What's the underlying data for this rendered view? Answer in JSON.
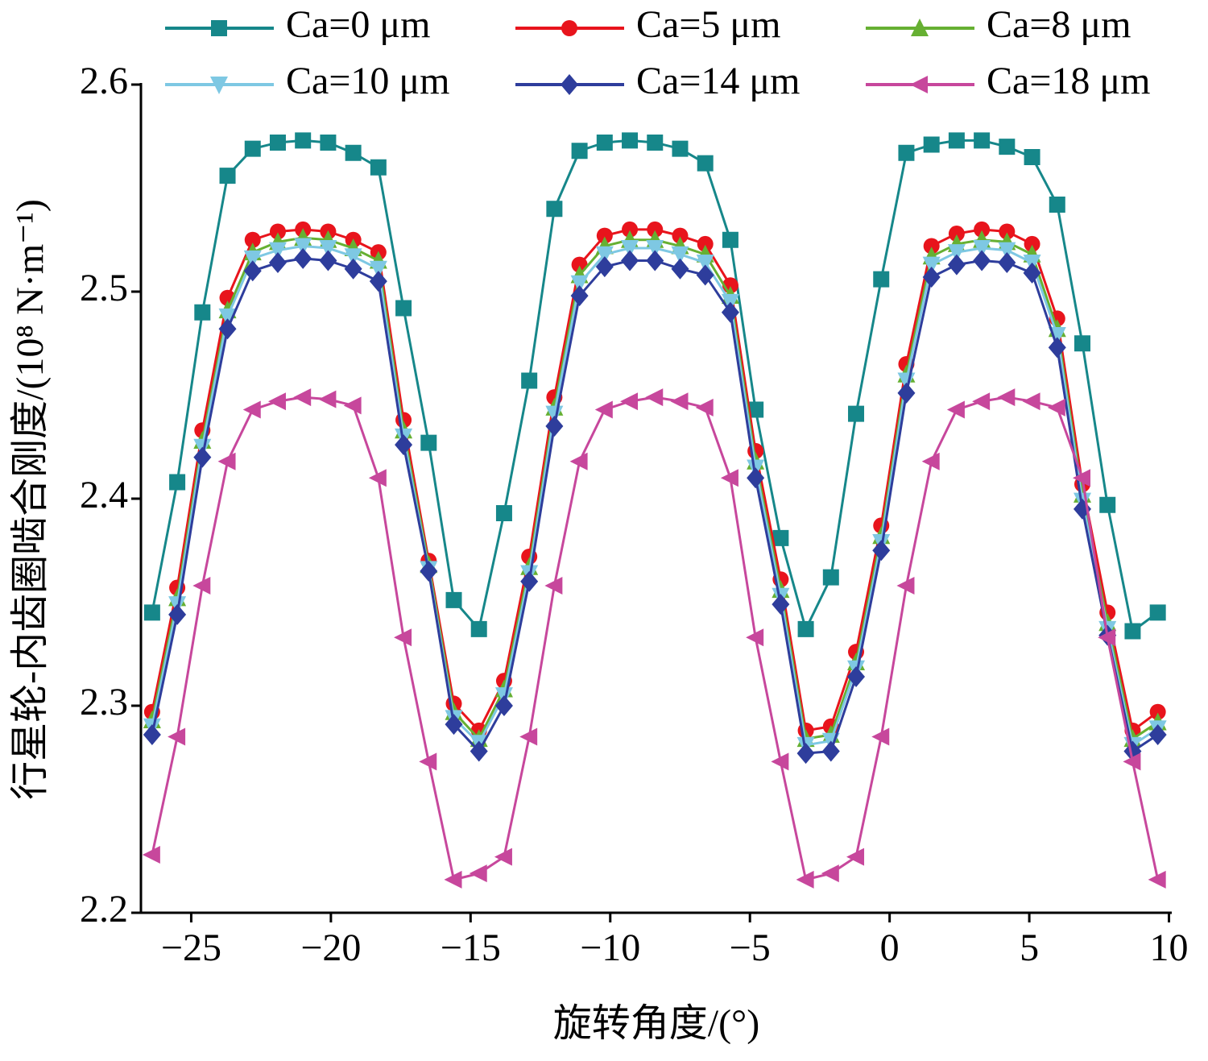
{
  "chart_data": {
    "type": "line",
    "xlabel": "旋转角度/(°)",
    "ylabel": "行星轮-内齿圈啮合刚度/(10⁸ N·m⁻¹)",
    "legend": "top",
    "x": [
      -26.4,
      -25.5,
      -24.6,
      -23.7,
      -22.8,
      -21.9,
      -21.0,
      -20.1,
      -19.2,
      -18.3,
      -17.4,
      -16.5,
      -15.6,
      -14.7,
      -13.8,
      -12.9,
      -12.0,
      -11.1,
      -10.2,
      -9.3,
      -8.4,
      -7.5,
      -6.6,
      -5.7,
      -4.8,
      -3.9,
      -3.0,
      -2.1,
      -1.2,
      -0.3,
      0.6,
      1.5,
      2.4,
      3.3,
      4.2,
      5.1,
      6.0,
      6.9,
      7.8,
      8.7,
      9.6
    ],
    "series": [
      {
        "name": "Ca=0 μm",
        "color": "#16878a",
        "marker": "square",
        "values": [
          2.345,
          2.408,
          2.49,
          2.556,
          2.569,
          2.572,
          2.573,
          2.572,
          2.567,
          2.56,
          2.492,
          2.427,
          2.351,
          2.337,
          2.393,
          2.457,
          2.54,
          2.568,
          2.572,
          2.573,
          2.572,
          2.569,
          2.562,
          2.525,
          2.443,
          2.381,
          2.337,
          2.362,
          2.441,
          2.506,
          2.567,
          2.571,
          2.573,
          2.573,
          2.57,
          2.565,
          2.542,
          2.475,
          2.397,
          2.336,
          2.345
        ]
      },
      {
        "name": "Ca=5 μm",
        "color": "#e8141c",
        "marker": "circle",
        "values": [
          2.297,
          2.357,
          2.433,
          2.497,
          2.525,
          2.529,
          2.53,
          2.529,
          2.525,
          2.519,
          2.438,
          2.37,
          2.301,
          2.288,
          2.312,
          2.372,
          2.449,
          2.513,
          2.527,
          2.53,
          2.53,
          2.527,
          2.523,
          2.503,
          2.423,
          2.361,
          2.288,
          2.29,
          2.326,
          2.387,
          2.465,
          2.522,
          2.528,
          2.53,
          2.529,
          2.523,
          2.487,
          2.407,
          2.345,
          2.288,
          2.297
        ]
      },
      {
        "name": "Ca=8 μm",
        "color": "#66b032",
        "marker": "triangle-up",
        "values": [
          2.293,
          2.352,
          2.428,
          2.491,
          2.519,
          2.524,
          2.526,
          2.525,
          2.521,
          2.515,
          2.433,
          2.368,
          2.297,
          2.284,
          2.308,
          2.367,
          2.444,
          2.508,
          2.522,
          2.525,
          2.525,
          2.522,
          2.518,
          2.498,
          2.418,
          2.356,
          2.284,
          2.286,
          2.321,
          2.382,
          2.46,
          2.517,
          2.523,
          2.525,
          2.524,
          2.518,
          2.482,
          2.402,
          2.34,
          2.284,
          2.292
        ]
      },
      {
        "name": "Ca=10 μm",
        "color": "#7ec8e3",
        "marker": "triangle-down",
        "values": [
          2.29,
          2.349,
          2.425,
          2.488,
          2.516,
          2.52,
          2.522,
          2.521,
          2.517,
          2.511,
          2.43,
          2.366,
          2.294,
          2.282,
          2.305,
          2.364,
          2.441,
          2.504,
          2.518,
          2.521,
          2.521,
          2.518,
          2.514,
          2.495,
          2.415,
          2.353,
          2.281,
          2.283,
          2.318,
          2.379,
          2.457,
          2.513,
          2.519,
          2.521,
          2.52,
          2.514,
          2.479,
          2.399,
          2.337,
          2.281,
          2.289
        ]
      },
      {
        "name": "Ca=14 μm",
        "color": "#2e3d9c",
        "marker": "diamond",
        "values": [
          2.286,
          2.344,
          2.42,
          2.482,
          2.51,
          2.514,
          2.516,
          2.515,
          2.511,
          2.505,
          2.426,
          2.365,
          2.291,
          2.278,
          2.3,
          2.36,
          2.435,
          2.498,
          2.512,
          2.515,
          2.515,
          2.511,
          2.508,
          2.49,
          2.41,
          2.349,
          2.277,
          2.278,
          2.314,
          2.375,
          2.451,
          2.507,
          2.513,
          2.515,
          2.514,
          2.509,
          2.473,
          2.395,
          2.334,
          2.278,
          2.286
        ]
      },
      {
        "name": "Ca=18 μm",
        "color": "#c7479c",
        "marker": "triangle-left",
        "values": [
          2.228,
          2.285,
          2.358,
          2.418,
          2.443,
          2.447,
          2.449,
          2.448,
          2.445,
          2.41,
          2.333,
          2.273,
          2.216,
          2.219,
          2.227,
          2.285,
          2.358,
          2.418,
          2.443,
          2.447,
          2.449,
          2.447,
          2.444,
          2.41,
          2.333,
          2.273,
          2.216,
          2.219,
          2.227,
          2.285,
          2.358,
          2.418,
          2.443,
          2.447,
          2.449,
          2.447,
          2.444,
          2.41,
          2.333,
          2.273,
          2.216
        ]
      }
    ],
    "xlim": [
      -26.8,
      10.1
    ],
    "xticks": [
      {
        "value": -25,
        "label": "−25"
      },
      {
        "value": -20,
        "label": "−20"
      },
      {
        "value": -15,
        "label": "−15"
      },
      {
        "value": -10,
        "label": "−10"
      },
      {
        "value": -5,
        "label": "−5"
      },
      0,
      5,
      10
    ],
    "ylim": [
      2.2,
      2.6
    ],
    "yticks": [
      2.2,
      2.3,
      2.4,
      2.5,
      2.6
    ]
  }
}
